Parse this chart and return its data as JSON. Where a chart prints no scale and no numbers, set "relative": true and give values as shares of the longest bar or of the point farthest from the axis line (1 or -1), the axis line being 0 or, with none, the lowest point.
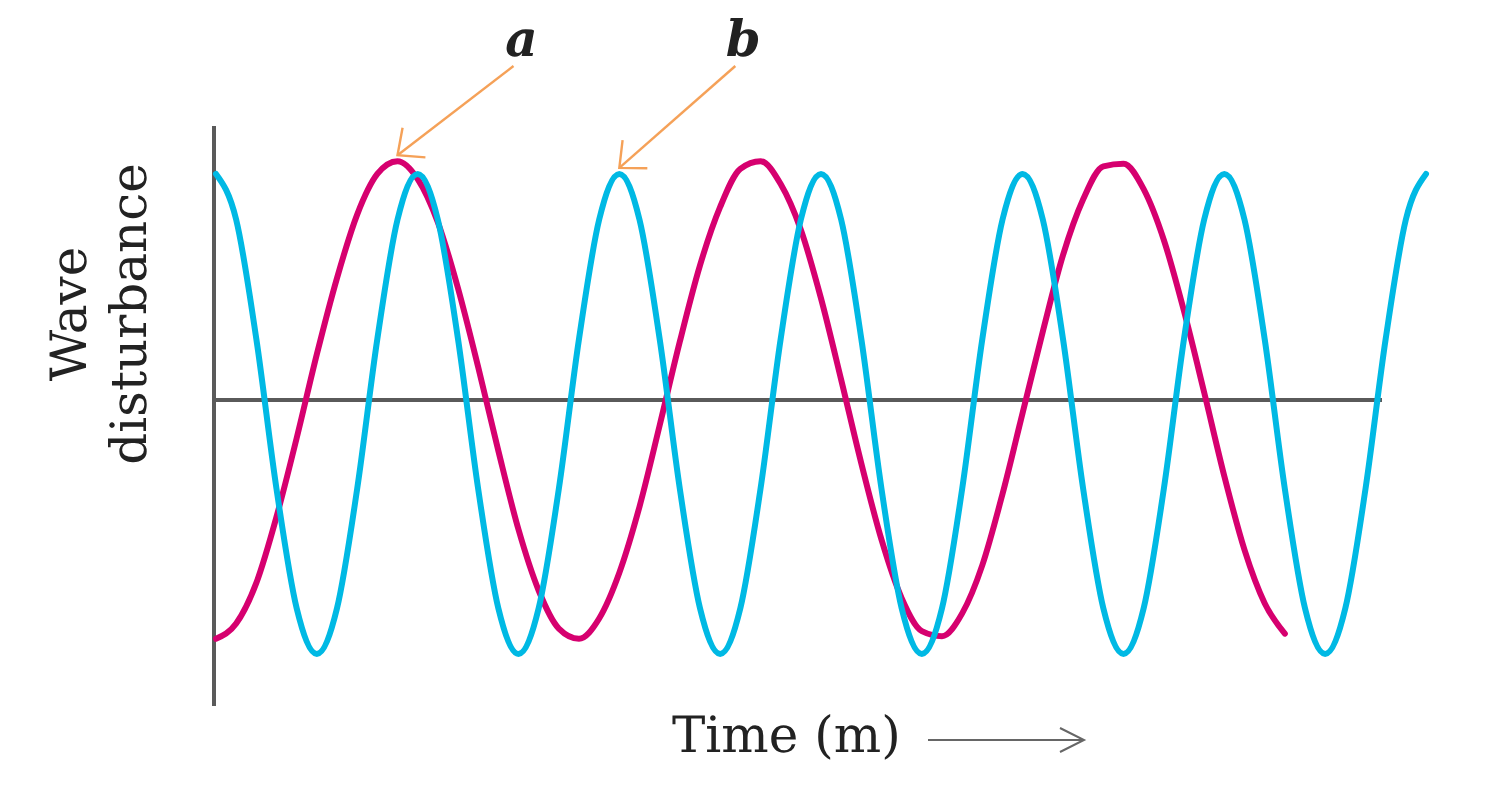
{
  "chart_data": {
    "type": "line",
    "relative": true,
    "xlabel": "Time (m)",
    "ylabel": "Wave disturbance",
    "categories": [
      null,
      null,
      null,
      null,
      null,
      null,
      null,
      null,
      null,
      null,
      null,
      null,
      null,
      null,
      null,
      null,
      null,
      null,
      null,
      null,
      null,
      null,
      null,
      null,
      null,
      null,
      null,
      null,
      null,
      null,
      null,
      null,
      null,
      null,
      null,
      null,
      null,
      null,
      null,
      null,
      null,
      null,
      null,
      null,
      null,
      null,
      null,
      null,
      null,
      null,
      null,
      null,
      null,
      null,
      null,
      null,
      null,
      null,
      null,
      null,
      null
    ],
    "series": [
      {
        "name": "a",
        "color": "#d6006f",
        "values": [
          -0.94,
          -0.88,
          -0.72,
          -0.46,
          -0.15,
          0.18,
          0.48,
          0.73,
          0.89,
          0.94,
          0.87,
          0.7,
          0.44,
          0.13,
          -0.2,
          -0.51,
          -0.75,
          -0.9,
          -0.94,
          -0.86,
          -0.68,
          -0.42,
          -0.1,
          0.23,
          0.53,
          0.76,
          0.91,
          0.94,
          0.85,
          0.67,
          0.4,
          0.08,
          -0.25,
          -0.55,
          -0.78,
          -0.91,
          -0.93,
          -0.84,
          -0.65,
          -0.37,
          -0.05,
          0.27,
          0.57,
          0.79,
          0.92,
          0.93,
          0.83,
          0.63,
          0.35,
          0.03,
          -0.3,
          -0.59,
          -0.8,
          -0.92,
          null,
          null,
          null,
          null,
          null,
          null,
          null
        ]
      },
      {
        "name": "b",
        "color": "#00b9e4",
        "values": [
          0.89,
          0.71,
          0.24,
          -0.35,
          -0.82,
          -1,
          -0.82,
          -0.35,
          0.24,
          0.71,
          0.89,
          0.71,
          0.24,
          -0.35,
          -0.82,
          -1,
          -0.82,
          -0.35,
          0.24,
          0.71,
          0.89,
          0.71,
          0.24,
          -0.35,
          -0.82,
          -1,
          -0.82,
          -0.35,
          0.24,
          0.71,
          0.89,
          0.71,
          0.24,
          -0.35,
          -0.82,
          -1,
          -0.82,
          -0.35,
          0.24,
          0.71,
          0.89,
          0.71,
          0.24,
          -0.35,
          -0.82,
          -1,
          -0.82,
          -0.35,
          0.24,
          0.71,
          0.89,
          0.71,
          0.24,
          -0.35,
          -0.82,
          -1,
          -0.82,
          -0.35,
          0.24,
          0.71,
          0.89
        ]
      }
    ]
  }
}
